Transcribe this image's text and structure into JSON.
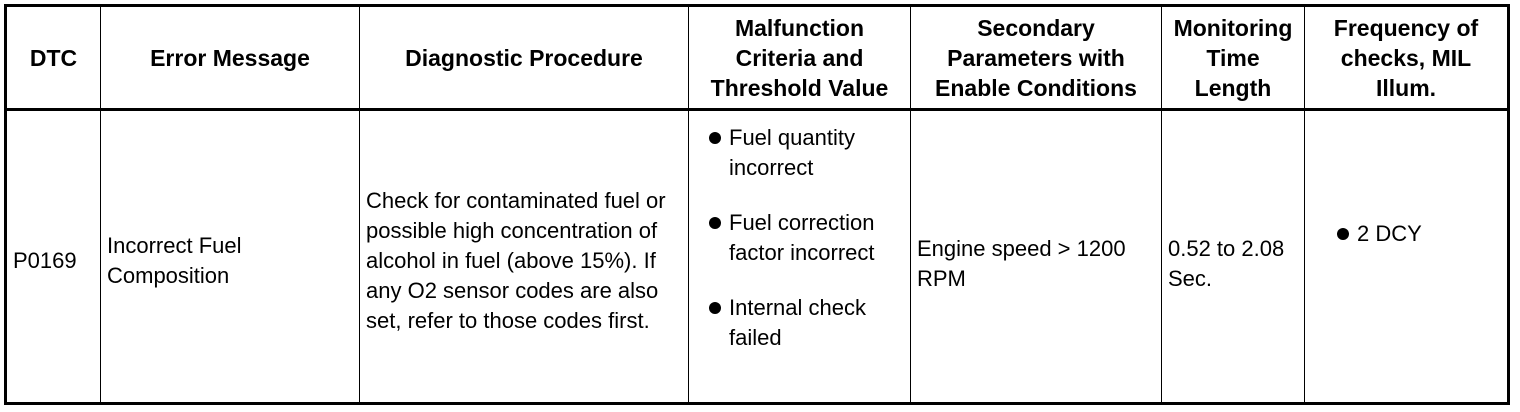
{
  "table": {
    "headers": [
      "DTC",
      "Error Message",
      "Diagnostic Procedure",
      "Malfunction Criteria and Threshold Value",
      "Secondary Parameters with Enable Conditions",
      "Monitoring Time Length",
      "Frequency of checks, MIL Illum."
    ],
    "row": {
      "dtc": "P0169",
      "error_message": "Incorrect Fuel Composition",
      "diagnostic_procedure": "Check for contaminated fuel or possible high concentration of alcohol in fuel (above 15%). If any O2 sensor codes are also set, refer to those codes first.",
      "criteria": [
        "Fuel quantity incorrect",
        "Fuel correction factor incorrect",
        "Internal check failed"
      ],
      "secondary_parameters": "Engine speed > 1200 RPM",
      "monitoring_time": "0.52 to 2.08 Sec.",
      "frequency": [
        "2 DCY"
      ]
    }
  },
  "icons": {
    "bullet": "bullet-dot-icon"
  }
}
